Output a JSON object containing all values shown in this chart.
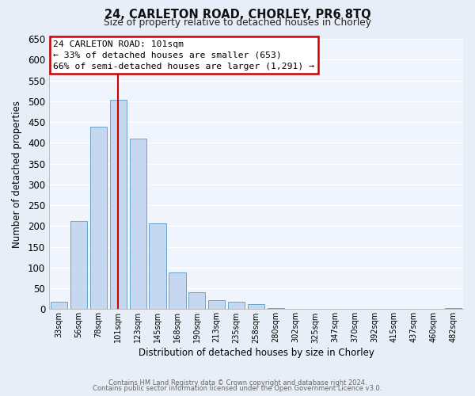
{
  "title": "24, CARLETON ROAD, CHORLEY, PR6 8TQ",
  "subtitle": "Size of property relative to detached houses in Chorley",
  "xlabel": "Distribution of detached houses by size in Chorley",
  "ylabel": "Number of detached properties",
  "bar_labels": [
    "33sqm",
    "56sqm",
    "78sqm",
    "101sqm",
    "123sqm",
    "145sqm",
    "168sqm",
    "190sqm",
    "213sqm",
    "235sqm",
    "258sqm",
    "280sqm",
    "302sqm",
    "325sqm",
    "347sqm",
    "370sqm",
    "392sqm",
    "415sqm",
    "437sqm",
    "460sqm",
    "482sqm"
  ],
  "bar_values": [
    18,
    213,
    438,
    503,
    410,
    207,
    88,
    40,
    22,
    18,
    12,
    3,
    0,
    0,
    0,
    0,
    0,
    0,
    0,
    0,
    3
  ],
  "bar_color": "#c5d8f0",
  "bar_edge_color": "#6ba3cc",
  "property_line_x": 3,
  "property_line_color": "#cc0000",
  "ylim": [
    0,
    650
  ],
  "yticks": [
    0,
    50,
    100,
    150,
    200,
    250,
    300,
    350,
    400,
    450,
    500,
    550,
    600,
    650
  ],
  "annotation_title": "24 CARLETON ROAD: 101sqm",
  "annotation_line1": "← 33% of detached houses are smaller (653)",
  "annotation_line2": "66% of semi-detached houses are larger (1,291) →",
  "annotation_box_color": "#ffffff",
  "annotation_box_edge": "#cc0000",
  "footer_line1": "Contains HM Land Registry data © Crown copyright and database right 2024.",
  "footer_line2": "Contains public sector information licensed under the Open Government Licence v3.0.",
  "bg_color": "#e8eef8",
  "plot_bg_color": "#f0f4fc"
}
